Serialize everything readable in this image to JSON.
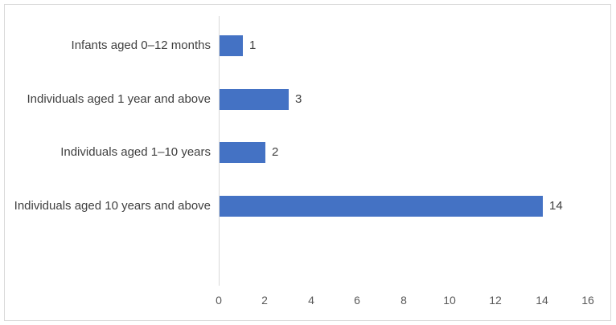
{
  "chart_data": {
    "type": "bar",
    "orientation": "horizontal",
    "title": "",
    "xlabel": "",
    "ylabel": "",
    "categories": [
      "Infants aged 0–12 months",
      "Individuals aged 1 year and above",
      "Individuals aged 1–10 years",
      "Individuals aged 10 years and above"
    ],
    "values": [
      1,
      3,
      2,
      14
    ],
    "data_labels": [
      "1",
      "3",
      "2",
      "14"
    ],
    "xlim": [
      0,
      16
    ],
    "x_ticks": [
      0,
      2,
      4,
      6,
      8,
      10,
      12,
      14,
      16
    ],
    "grid": false,
    "legend": false,
    "colors": {
      "bar": "#4472C4",
      "category_label": "#404040",
      "value_label": "#404040",
      "tick_label": "#595959",
      "axis_line": "#d9d9d9",
      "frame_border": "#d9d9d9",
      "background": "#ffffff"
    }
  }
}
